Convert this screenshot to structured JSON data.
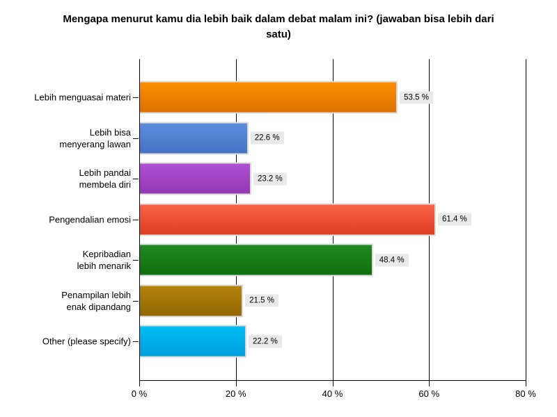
{
  "title": "Mengapa menurut kamu dia lebih baik dalam debat malam ini? (jawaban bisa lebih dari\nsatu)",
  "colors": {
    "background": "#ffffff",
    "axis": "#000000",
    "value_label_bg": "#e9e9e9",
    "bar_border": "#dbdbdb",
    "text": "#000000"
  },
  "chart_data": {
    "type": "bar",
    "orientation": "horizontal",
    "title": "Mengapa menurut kamu dia lebih baik dalam debat malam ini? (jawaban bisa lebih dari satu)",
    "xlabel": "",
    "ylabel": "",
    "xlim": [
      0,
      80
    ],
    "grid": "vertical",
    "legend": "none",
    "categories": [
      "Lebih menguasai materi",
      "Lebih bisa menyerang lawan",
      "Lebih pandai membela diri",
      "Pengendalian emosi",
      "Kepribadian lebih menarik",
      "Penampilan lebih enak dipandang",
      "Other (please specify)"
    ],
    "values": [
      53.5,
      22.6,
      23.2,
      61.4,
      48.4,
      21.5,
      22.2
    ],
    "x_ticks": [
      {
        "value": 0,
        "label": "0 %"
      },
      {
        "value": 20,
        "label": "20 %"
      },
      {
        "value": 40,
        "label": "40 %"
      },
      {
        "value": 60,
        "label": "60 %"
      },
      {
        "value": 80,
        "label": "80 %"
      }
    ],
    "bars": [
      {
        "category": "Lebih menguasai materi",
        "label_lines": "Lebih menguasai materi",
        "value": 53.5,
        "value_label": "53.5 %",
        "color_top": "#FB8F00",
        "color_bottom": "#DE7100"
      },
      {
        "category": "Lebih bisa menyerang lawan",
        "label_lines": "Lebih bisa\nmenyerang lawan",
        "value": 22.6,
        "value_label": "22.6 %",
        "color_top": "#5C8EDC",
        "color_bottom": "#4472C4"
      },
      {
        "category": "Lebih pandai membela diri",
        "label_lines": "Lebih pandai\nmembela diri",
        "value": 23.2,
        "value_label": "23.2 %",
        "color_top": "#B04FD3",
        "color_bottom": "#9438B6"
      },
      {
        "category": "Pengendalian emosi",
        "label_lines": "Pengendalian emosi",
        "value": 61.4,
        "value_label": "61.4 %",
        "color_top": "#F96347",
        "color_bottom": "#DD3D21"
      },
      {
        "category": "Kepribadian lebih menarik",
        "label_lines": "Kepribadian\nlebih menarik",
        "value": 48.4,
        "value_label": "48.4 %",
        "color_top": "#218A21",
        "color_bottom": "#0E6F0E"
      },
      {
        "category": "Penampilan lebih enak dipandang",
        "label_lines": "Penampilan lebih\nenak dipandang",
        "value": 21.5,
        "value_label": "21.5 %",
        "color_top": "#B5840C",
        "color_bottom": "#906703"
      },
      {
        "category": "Other (please specify)",
        "label_lines": "Other (please specify)",
        "value": 22.2,
        "value_label": "22.2 %",
        "color_top": "#00BCF2",
        "color_bottom": "#00A0DD"
      }
    ]
  }
}
